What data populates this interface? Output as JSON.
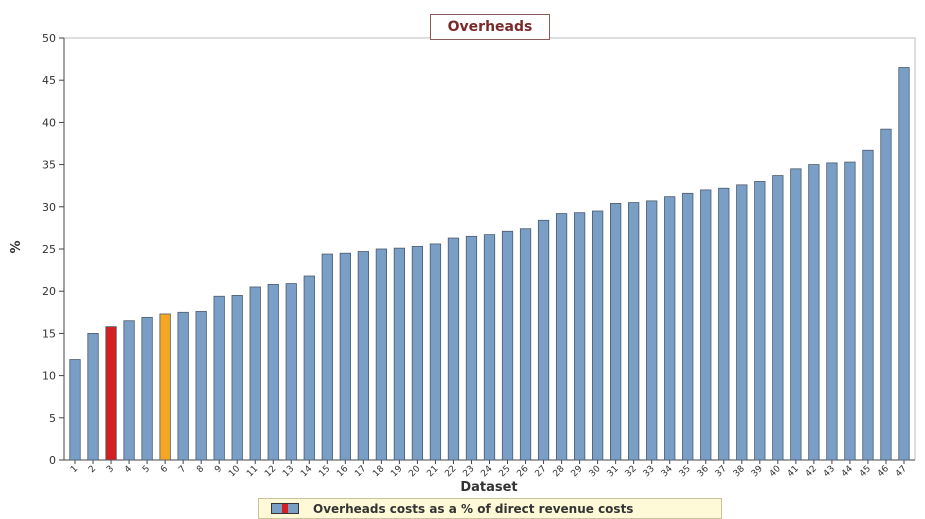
{
  "chart_data": {
    "type": "bar",
    "title": "Overheads",
    "xlabel": "Dataset",
    "ylabel": "%",
    "ylim": [
      0,
      50
    ],
    "yticks": [
      0,
      5,
      10,
      15,
      20,
      25,
      30,
      35,
      40,
      45,
      50
    ],
    "categories": [
      "1",
      "2",
      "3",
      "4",
      "5",
      "6",
      "7",
      "8",
      "9",
      "10",
      "11",
      "12",
      "13",
      "14",
      "15",
      "16",
      "17",
      "18",
      "19",
      "20",
      "21",
      "22",
      "23",
      "24",
      "25",
      "26",
      "27",
      "28",
      "29",
      "30",
      "31",
      "32",
      "33",
      "34",
      "35",
      "36",
      "37",
      "38",
      "39",
      "40",
      "41",
      "42",
      "43",
      "44",
      "45",
      "46",
      "47"
    ],
    "values": [
      11.9,
      15.0,
      15.8,
      16.5,
      16.9,
      17.3,
      17.5,
      17.6,
      19.4,
      19.5,
      20.5,
      20.8,
      20.9,
      21.8,
      24.4,
      24.5,
      24.7,
      25.0,
      25.1,
      25.3,
      25.6,
      26.3,
      26.5,
      26.7,
      27.1,
      27.4,
      28.4,
      29.2,
      29.3,
      29.5,
      30.4,
      30.5,
      30.7,
      31.2,
      31.6,
      32.0,
      32.2,
      32.6,
      33.0,
      33.7,
      34.5,
      35.0,
      35.2,
      35.3,
      36.7,
      39.2,
      46.5
    ],
    "series": [
      {
        "name": "Overheads costs as a % of direct revenue costs"
      }
    ],
    "highlights": {
      "3": "#d42020",
      "6": "#f5a623"
    },
    "bar_color": "#7a9fc7",
    "bar_edge": "#4a5a6a",
    "grid": false,
    "legend_position": "bottom"
  }
}
